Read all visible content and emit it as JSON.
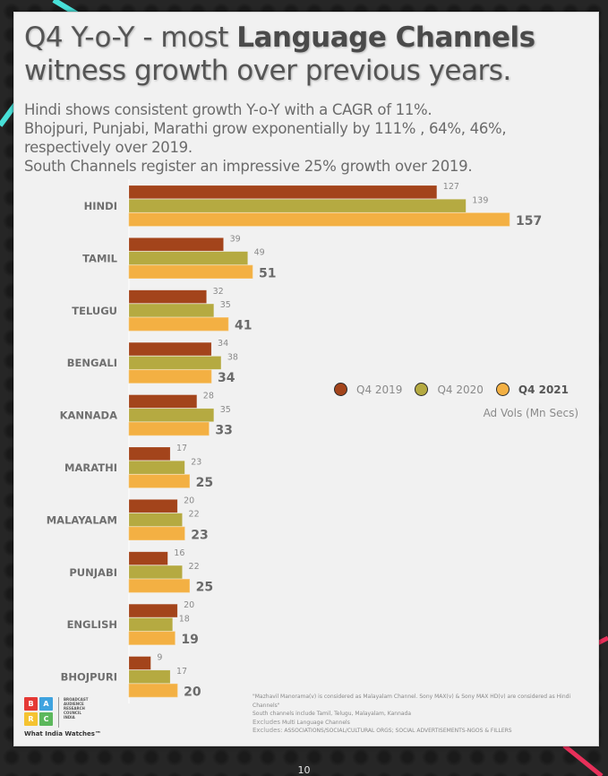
{
  "title": {
    "part1": "Q4 Y-o-Y - most ",
    "part2_bold": "Language Channels",
    "part3": "witness growth over previous years."
  },
  "subtitle_lines": [
    "Hindi shows consistent growth Y-o-Y with a CAGR of 11%.",
    "Bhojpuri, Punjabi, Marathi grow exponentially by 111% , 64%, 46%,",
    "respectively over 2019.",
    "South Channels register an impressive 25% growth over 2019."
  ],
  "chart_data": {
    "type": "bar",
    "orientation": "horizontal",
    "title": "Q4 Y-o-Y - most Language Channels witness growth over previous years.",
    "xlabel": "Ad Vols (Mn Secs)",
    "ylabel": "",
    "xlim": [
      0,
      157
    ],
    "grid": false,
    "legend_position": "right",
    "categories": [
      "HINDI",
      "TAMIL",
      "TELUGU",
      "BENGALI",
      "KANNADA",
      "MARATHI",
      "MALAYALAM",
      "PUNJABI",
      "ENGLISH",
      "BHOJPURI"
    ],
    "series": [
      {
        "name": "Q4 2019",
        "color": "#a3441b",
        "values": [
          127,
          39,
          32,
          34,
          28,
          17,
          20,
          16,
          20,
          9
        ]
      },
      {
        "name": "Q4 2020",
        "color": "#b5aa41",
        "values": [
          139,
          49,
          35,
          38,
          35,
          23,
          22,
          22,
          18,
          17
        ]
      },
      {
        "name": "Q4 2021",
        "color": "#f3b043",
        "values": [
          157,
          51,
          41,
          34,
          33,
          25,
          23,
          25,
          19,
          20
        ]
      }
    ]
  },
  "legend": {
    "items": [
      {
        "label": "Q4 2019",
        "color": "#a3441b",
        "bold": false
      },
      {
        "label": "Q4 2020",
        "color": "#b5aa41",
        "bold": false
      },
      {
        "label": "Q4 2021",
        "color": "#f3b043",
        "bold": true
      }
    ],
    "unit": "Ad Vols (Mn Secs)"
  },
  "logo": {
    "tiles": [
      {
        "letter": "B",
        "color": "#e53935"
      },
      {
        "letter": "A",
        "color": "#3fa3df"
      },
      {
        "letter": "R",
        "color": "#f5c331"
      },
      {
        "letter": "C",
        "color": "#5cb85c"
      }
    ],
    "org_lines": [
      "BROADCAST",
      "AUDIENCE",
      "RESEARCH",
      "COUNCIL",
      "INDIA"
    ],
    "tagline": "What India Watches™"
  },
  "notes": {
    "line1": "\"Mazhavil Manorama(v) is considered as Malayalam Channel.  Sony MAX(v) & Sony MAX HD(v) are considered as Hindi Channels\"",
    "line2": "South channels include Tamil, Telugu, Malayalam, Kannada",
    "excl1_label": "Excludes",
    "excl1_text": " Multi Language Channels",
    "excl2_label": "Excludes:",
    "excl2_text": " ASSOCIATIONS/SOCIAL/CULTURAL ORGS; SOCIAL ADVERTISEMENTS-NGOS & FILLERS"
  },
  "page_number": "10"
}
